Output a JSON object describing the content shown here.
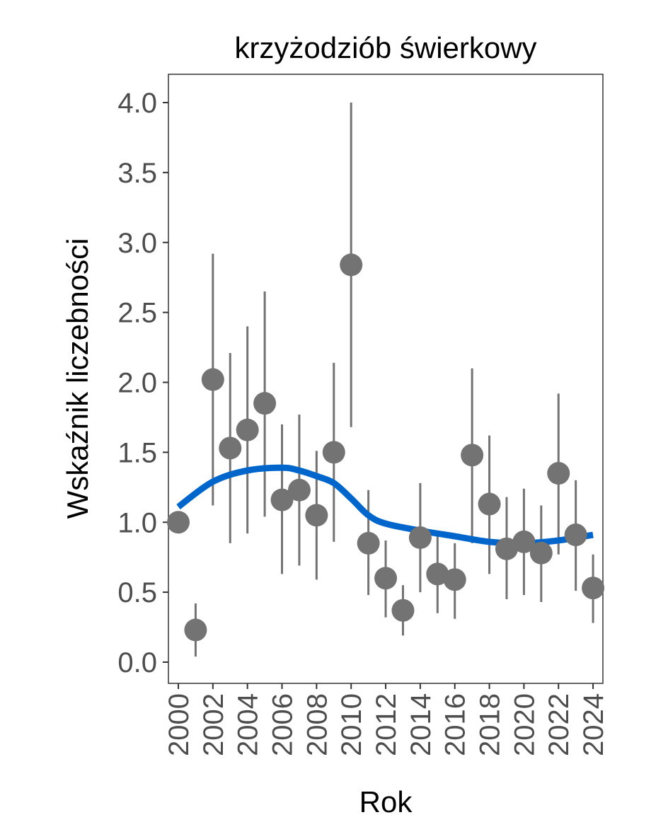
{
  "chart_data": {
    "type": "scatter",
    "title": "krzyżodziób świerkowy",
    "xlabel": "Rok",
    "ylabel": "Wskaźnik liczebności",
    "xlim": [
      1999.5,
      2024.5
    ],
    "ylim": [
      -0.15,
      4.2
    ],
    "yticks": [
      0.0,
      0.5,
      1.0,
      1.5,
      2.0,
      2.5,
      3.0,
      3.5,
      4.0
    ],
    "ytick_labels": [
      "0.0",
      "0.5",
      "1.0",
      "1.5",
      "2.0",
      "2.5",
      "3.0",
      "3.5",
      "4.0"
    ],
    "xticks": [
      2000,
      2002,
      2004,
      2006,
      2008,
      2010,
      2012,
      2014,
      2016,
      2018,
      2020,
      2022,
      2024
    ],
    "xtick_labels": [
      "2000",
      "2002",
      "2004",
      "2006",
      "2008",
      "2010",
      "2012",
      "2014",
      "2016",
      "2018",
      "2020",
      "2022",
      "2024"
    ],
    "grid": false,
    "points": {
      "x": [
        2000,
        2001,
        2002,
        2003,
        2004,
        2005,
        2006,
        2007,
        2008,
        2009,
        2010,
        2011,
        2012,
        2013,
        2014,
        2015,
        2016,
        2017,
        2018,
        2019,
        2020,
        2021,
        2022,
        2023,
        2024
      ],
      "y": [
        1.0,
        0.23,
        2.02,
        1.53,
        1.66,
        1.85,
        1.16,
        1.23,
        1.05,
        1.5,
        2.84,
        0.85,
        0.6,
        0.37,
        0.89,
        0.63,
        0.59,
        1.48,
        1.13,
        0.81,
        0.86,
        0.78,
        1.35,
        0.91,
        0.53
      ],
      "lower": [
        1.0,
        0.04,
        1.12,
        0.85,
        0.92,
        1.04,
        0.63,
        0.69,
        0.59,
        0.86,
        1.68,
        0.48,
        0.32,
        0.19,
        0.5,
        0.35,
        0.31,
        0.85,
        0.63,
        0.45,
        0.48,
        0.43,
        0.77,
        0.51,
        0.28
      ],
      "upper": [
        1.0,
        0.42,
        2.92,
        2.21,
        2.4,
        2.65,
        1.7,
        1.77,
        1.51,
        2.14,
        4.0,
        1.23,
        0.87,
        0.55,
        1.28,
        0.91,
        0.85,
        2.1,
        1.62,
        1.18,
        1.24,
        1.12,
        1.92,
        1.3,
        0.77
      ],
      "color": "#737373"
    },
    "trend": {
      "x": [
        2000,
        2002,
        2004,
        2006,
        2007,
        2008,
        2009,
        2010,
        2011,
        2012,
        2014,
        2016,
        2018,
        2020,
        2022,
        2024
      ],
      "y": [
        1.11,
        1.29,
        1.37,
        1.39,
        1.37,
        1.33,
        1.28,
        1.17,
        1.05,
        0.99,
        0.94,
        0.9,
        0.86,
        0.85,
        0.87,
        0.91
      ],
      "color": "#0066cc"
    }
  }
}
